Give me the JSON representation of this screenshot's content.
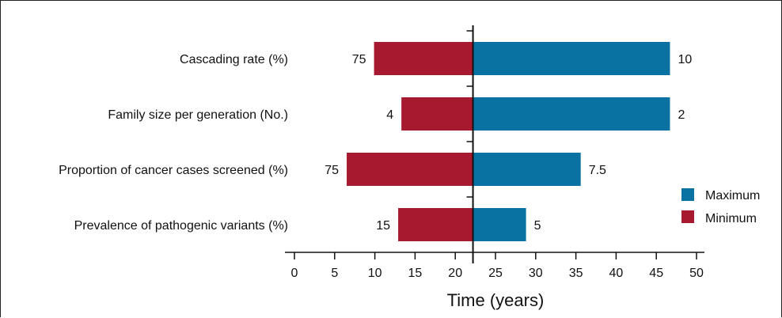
{
  "chart_data": {
    "type": "bar",
    "orientation": "horizontal-tornado",
    "baseline": 22.2,
    "categories": [
      "Cascading rate (%)",
      "Family size per generation (No.)",
      "Proportion of cancer cases screened (%)",
      "Prevalence of pathogenic variants (%)"
    ],
    "series": [
      {
        "name": "Minimum",
        "color": "#a6192e",
        "values": [
          9.9,
          13.3,
          6.5,
          12.9
        ],
        "labels": [
          "75",
          "4",
          "75",
          "15"
        ]
      },
      {
        "name": "Maximum",
        "color": "#0a72a3",
        "values": [
          46.7,
          46.7,
          35.6,
          28.8
        ],
        "labels": [
          "10",
          "2",
          "7.5",
          "5"
        ]
      }
    ],
    "xlabel": "Time (years)",
    "ylabel": "",
    "xlim": [
      0,
      50
    ],
    "xticks": [
      0,
      5,
      10,
      15,
      20,
      25,
      30,
      35,
      40,
      45,
      50
    ],
    "legend_position": "right",
    "grid": false
  }
}
